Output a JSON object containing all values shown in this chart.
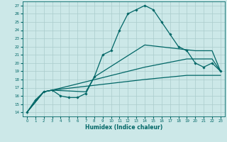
{
  "title": "",
  "xlabel": "Humidex (Indice chaleur)",
  "xlim": [
    -0.5,
    23.5
  ],
  "ylim": [
    13.5,
    27.5
  ],
  "xticks": [
    0,
    1,
    2,
    3,
    4,
    5,
    6,
    7,
    8,
    9,
    10,
    11,
    12,
    13,
    14,
    15,
    16,
    17,
    18,
    19,
    20,
    21,
    22,
    23
  ],
  "yticks": [
    14,
    15,
    16,
    17,
    18,
    19,
    20,
    21,
    22,
    23,
    24,
    25,
    26,
    27
  ],
  "background_color": "#cce8e8",
  "grid_color": "#aacccc",
  "line_color": "#006666",
  "curve1_x": [
    0,
    1,
    2,
    3,
    4,
    5,
    6,
    7,
    8,
    9,
    10,
    11,
    12,
    13,
    14,
    15,
    16,
    17,
    18,
    19,
    20,
    21,
    22,
    23
  ],
  "curve1_y": [
    14,
    15.5,
    16.5,
    16.7,
    16.0,
    15.8,
    15.8,
    16.3,
    18.3,
    21.0,
    21.5,
    24.0,
    26.0,
    26.5,
    27.0,
    26.5,
    25.0,
    23.5,
    22.0,
    21.5,
    20.0,
    19.5,
    20.0,
    19.0
  ],
  "curve2_x": [
    0,
    2,
    3,
    3,
    7,
    8,
    14,
    20,
    21,
    22,
    23
  ],
  "curve2_y": [
    14,
    16.5,
    16.7,
    16.7,
    16.5,
    18.3,
    22.2,
    21.5,
    21.5,
    21.5,
    19.0
  ],
  "curve3_x": [
    0,
    2,
    3,
    14,
    19,
    22,
    23
  ],
  "curve3_y": [
    14,
    16.5,
    16.7,
    19.5,
    20.5,
    20.5,
    19.0
  ],
  "curve4_x": [
    0,
    2,
    3,
    14,
    19,
    23
  ],
  "curve4_y": [
    14,
    16.5,
    16.7,
    18.0,
    18.5,
    18.5
  ],
  "marker": "D",
  "markersize": 1.8,
  "linewidth": 0.9
}
